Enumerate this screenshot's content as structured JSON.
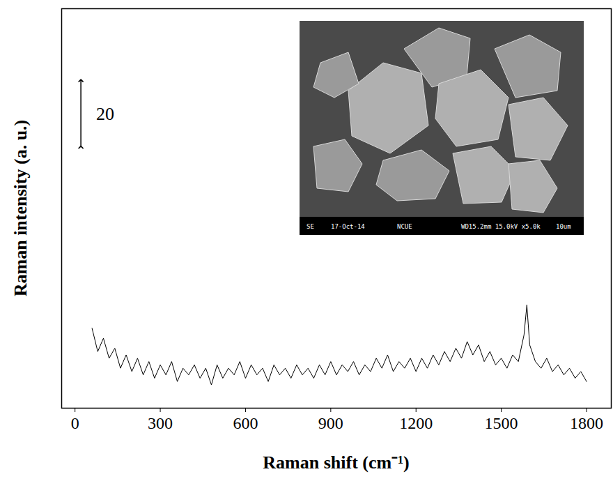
{
  "chart_data": {
    "type": "line",
    "x_label": "Raman shift (cm⁻¹)",
    "y_label": "Raman intensity (a. u.)",
    "x": [
      60,
      80,
      100,
      120,
      140,
      160,
      180,
      200,
      220,
      240,
      260,
      280,
      300,
      320,
      340,
      360,
      380,
      400,
      420,
      440,
      460,
      480,
      500,
      520,
      540,
      560,
      580,
      600,
      620,
      640,
      660,
      680,
      700,
      720,
      740,
      760,
      780,
      800,
      820,
      840,
      860,
      880,
      900,
      920,
      940,
      960,
      980,
      1000,
      1020,
      1040,
      1060,
      1080,
      1100,
      1120,
      1140,
      1160,
      1180,
      1200,
      1220,
      1240,
      1260,
      1280,
      1300,
      1320,
      1340,
      1360,
      1380,
      1400,
      1420,
      1440,
      1460,
      1480,
      1500,
      1520,
      1540,
      1560,
      1580,
      1590,
      1600,
      1620,
      1640,
      1660,
      1680,
      1700,
      1720,
      1740,
      1760,
      1780,
      1800
    ],
    "values": [
      24,
      17,
      21,
      15,
      18,
      12,
      16,
      11,
      15,
      10,
      14,
      9,
      13,
      10,
      14,
      8,
      12,
      10,
      13,
      9,
      12,
      7,
      13,
      9,
      12,
      10,
      14,
      9,
      13,
      10,
      12,
      8,
      13,
      10,
      12,
      9,
      13,
      10,
      12,
      9,
      13,
      10,
      14,
      10,
      13,
      11,
      14,
      10,
      13,
      11,
      15,
      12,
      16,
      11,
      14,
      12,
      15,
      11,
      15,
      12,
      16,
      13,
      17,
      14,
      18,
      15,
      20,
      16,
      19,
      14,
      17,
      13,
      15,
      12,
      16,
      14,
      22,
      31,
      19,
      14,
      12,
      15,
      11,
      13,
      10,
      12,
      9,
      11,
      8
    ],
    "color": "#000000",
    "xlim": [
      -47,
      1887
    ],
    "xticks": [
      0,
      300,
      600,
      900,
      1200,
      1500,
      1800
    ],
    "ylim": [
      0,
      120
    ],
    "tick_labels": "x",
    "scale_bar": 20,
    "inset": {
      "type": "image",
      "caption_bar": [
        "SE",
        "17-Oct-14",
        "NCUE",
        "WD15.2mm 15.0kV x5.0k",
        "10um"
      ]
    }
  }
}
